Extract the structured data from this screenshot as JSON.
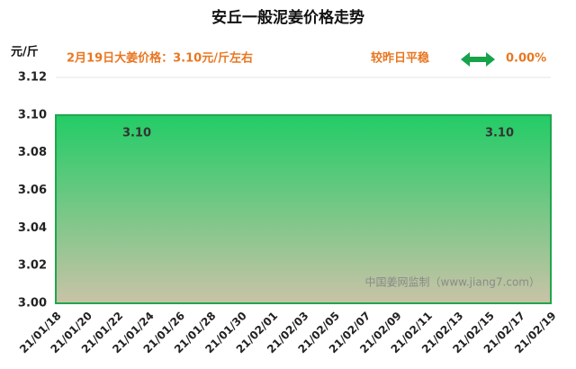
{
  "chart_data": {
    "type": "area",
    "title": "安丘一般泥姜价格走势",
    "y_label": "元/斤",
    "annotations": [
      "2月19日大姜价格：3.10元/斤左右",
      "较昨日平稳",
      "0.00%"
    ],
    "watermark": "中国姜网监制（www.jiang7.com）",
    "categories": [
      "21/01/18",
      "21/01/20",
      "21/01/22",
      "21/01/24",
      "21/01/26",
      "21/01/28",
      "21/01/30",
      "21/02/01",
      "21/02/03",
      "21/02/05",
      "21/02/07",
      "21/02/09",
      "21/02/11",
      "21/02/13",
      "21/02/15",
      "21/02/17",
      "21/02/19"
    ],
    "values": [
      3.1,
      3.1,
      3.1,
      3.1,
      3.1,
      3.1,
      3.1,
      3.1,
      3.1,
      3.1,
      3.1,
      3.1,
      3.1,
      3.1,
      3.1,
      3.1,
      3.1
    ],
    "value_labels": [
      "3.10",
      null,
      null,
      null,
      null,
      null,
      null,
      null,
      null,
      null,
      null,
      null,
      null,
      null,
      null,
      null,
      "3.10"
    ],
    "color": "#1fa64c",
    "ylim": [
      3.0,
      3.12
    ],
    "yticks": [
      {
        "value": 3.0,
        "label": "3.00"
      },
      {
        "value": 3.02,
        "label": "3.02"
      },
      {
        "value": 3.04,
        "label": "3.04"
      },
      {
        "value": 3.06,
        "label": "3.06"
      },
      {
        "value": 3.08,
        "label": "3.08"
      },
      {
        "value": 3.1,
        "label": "3.10"
      },
      {
        "value": 3.12,
        "label": "3.12"
      }
    ],
    "grid": true
  }
}
